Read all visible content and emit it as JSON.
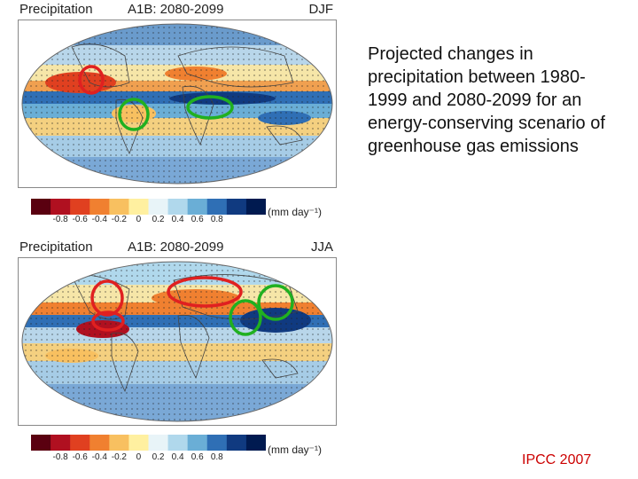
{
  "panels": [
    {
      "variable": "Precipitation",
      "scenario": "A1B: 2080-2099",
      "season": "DJF"
    },
    {
      "variable": "Precipitation",
      "scenario": "A1B: 2080-2099",
      "season": "JJA"
    }
  ],
  "colorbar": {
    "ticks": [
      "-0.8",
      "-0.6",
      "-0.4",
      "-0.2",
      "0",
      "0.2",
      "0.4",
      "0.6",
      "0.8"
    ],
    "unit": "(mm day⁻¹)",
    "colors": [
      "#5a0010",
      "#b01020",
      "#e04020",
      "#f08030",
      "#f8c060",
      "#fff0a0",
      "#e8f4f8",
      "#b0d8ec",
      "#6aaed6",
      "#2f6fb5",
      "#103a80",
      "#001a50"
    ]
  },
  "description": "Projected changes in precipitation between 1980-1999 and 2080-2099 for an energy-conserving scenario of greenhouse gas emissions",
  "credit": "IPCC 2007",
  "colors": {
    "drier_circle": "#e02020",
    "wetter_circle": "#20b020",
    "credit": "#cc0000"
  }
}
